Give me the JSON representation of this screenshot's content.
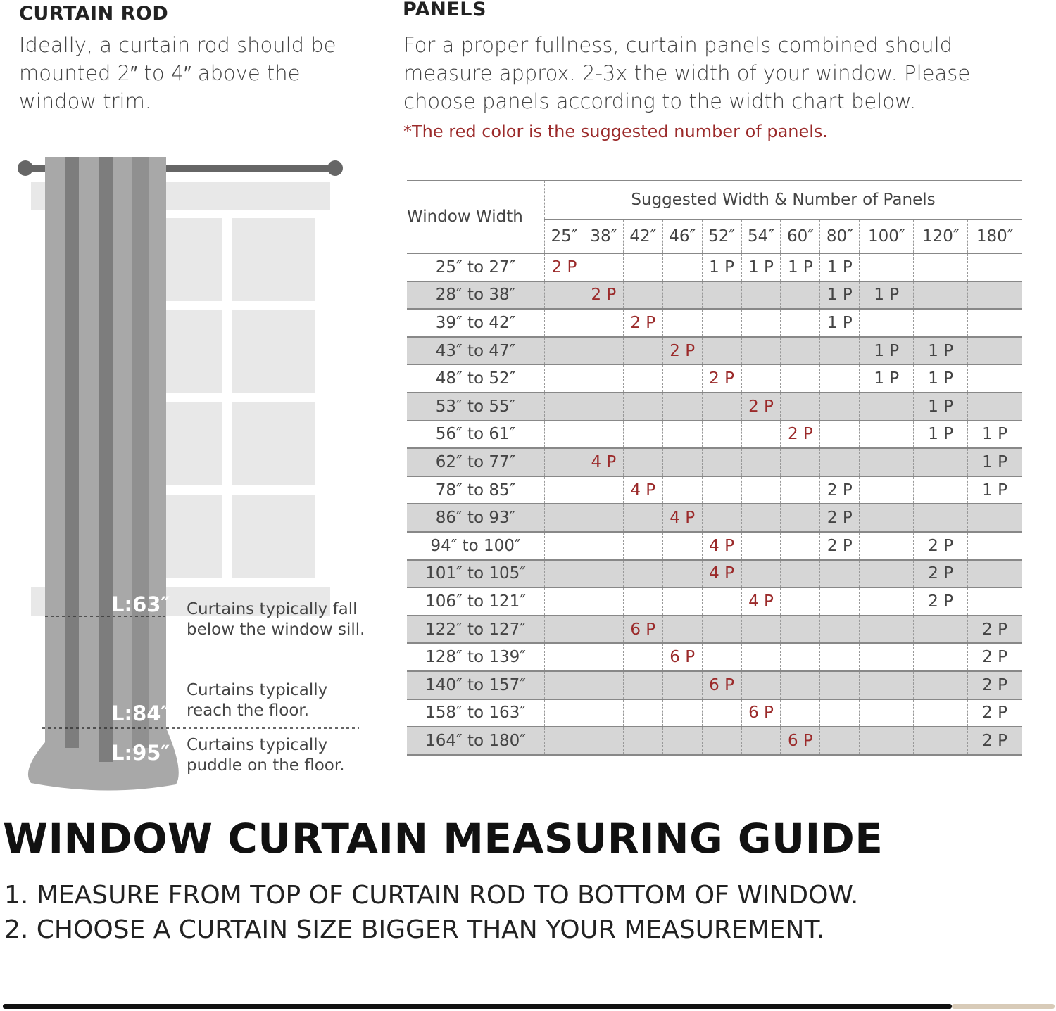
{
  "curtain_rod": {
    "heading": "CURTAIN ROD",
    "text": "Ideally, a curtain rod should be mounted 2″ to 4″ above the window trim."
  },
  "panels": {
    "heading": "PANELS",
    "text": "For a proper fullness, curtain panels combined should measure approx. 2-3x the width of your window. Please choose panels according to the width chart below.",
    "note": "*The red color is the suggested number of panels."
  },
  "table": {
    "row_header": "Window Width",
    "group_header": "Suggested Width & Number of Panels",
    "columns": [
      "25″",
      "38″",
      "42″",
      "46″",
      "52″",
      "54″",
      "60″",
      "80″",
      "100″",
      "120″",
      "180″"
    ],
    "rows": [
      {
        "label": "25″ to 27″",
        "cells": [
          "2 P",
          "",
          "",
          "",
          "1 P",
          "1 P",
          "1 P",
          "1 P",
          "",
          "",
          ""
        ],
        "suggested": 0
      },
      {
        "label": "28″ to 38″",
        "cells": [
          "",
          "2 P",
          "",
          "",
          "",
          "",
          "",
          "1 P",
          "1 P",
          "",
          ""
        ],
        "suggested": 1
      },
      {
        "label": "39″ to 42″",
        "cells": [
          "",
          "",
          "2 P",
          "",
          "",
          "",
          "",
          "1 P",
          "",
          "",
          ""
        ],
        "suggested": 2
      },
      {
        "label": "43″ to 47″",
        "cells": [
          "",
          "",
          "",
          "2 P",
          "",
          "",
          "",
          "",
          "1 P",
          "1 P",
          ""
        ],
        "suggested": 3
      },
      {
        "label": "48″ to 52″",
        "cells": [
          "",
          "",
          "",
          "",
          "2 P",
          "",
          "",
          "",
          "1 P",
          "1 P",
          ""
        ],
        "suggested": 4
      },
      {
        "label": "53″ to 55″",
        "cells": [
          "",
          "",
          "",
          "",
          "",
          "2 P",
          "",
          "",
          "",
          "1 P",
          ""
        ],
        "suggested": 5
      },
      {
        "label": "56″ to 61″",
        "cells": [
          "",
          "",
          "",
          "",
          "",
          "",
          "2 P",
          "",
          "",
          "1 P",
          "1 P"
        ],
        "suggested": 6
      },
      {
        "label": "62″ to 77″",
        "cells": [
          "",
          "4 P",
          "",
          "",
          "",
          "",
          "",
          "",
          "",
          "",
          "1 P"
        ],
        "suggested": 1
      },
      {
        "label": "78″ to 85″",
        "cells": [
          "",
          "",
          "4 P",
          "",
          "",
          "",
          "",
          "2 P",
          "",
          "",
          "1 P"
        ],
        "suggested": 2
      },
      {
        "label": "86″ to 93″",
        "cells": [
          "",
          "",
          "",
          "4 P",
          "",
          "",
          "",
          "2 P",
          "",
          "",
          ""
        ],
        "suggested": 3
      },
      {
        "label": "94″ to 100″",
        "cells": [
          "",
          "",
          "",
          "",
          "4 P",
          "",
          "",
          "2 P",
          "",
          "2 P",
          ""
        ],
        "suggested": 4
      },
      {
        "label": "101″ to 105″",
        "cells": [
          "",
          "",
          "",
          "",
          "4 P",
          "",
          "",
          "",
          "",
          "2 P",
          ""
        ],
        "suggested": 4
      },
      {
        "label": "106″ to 121″",
        "cells": [
          "",
          "",
          "",
          "",
          "",
          "4 P",
          "",
          "",
          "",
          "2 P",
          ""
        ],
        "suggested": 5
      },
      {
        "label": "122″ to 127″",
        "cells": [
          "",
          "",
          "6 P",
          "",
          "",
          "",
          "",
          "",
          "",
          "",
          "2 P"
        ],
        "suggested": 2
      },
      {
        "label": "128″ to 139″",
        "cells": [
          "",
          "",
          "",
          "6 P",
          "",
          "",
          "",
          "",
          "",
          "",
          "2 P"
        ],
        "suggested": 3
      },
      {
        "label": "140″ to 157″",
        "cells": [
          "",
          "",
          "",
          "",
          "6 P",
          "",
          "",
          "",
          "",
          "",
          "2 P"
        ],
        "suggested": 4
      },
      {
        "label": "158″ to 163″",
        "cells": [
          "",
          "",
          "",
          "",
          "",
          "6 P",
          "",
          "",
          "",
          "",
          "2 P"
        ],
        "suggested": 5
      },
      {
        "label": "164″ to 180″",
        "cells": [
          "",
          "",
          "",
          "",
          "",
          "",
          "6 P",
          "",
          "",
          "",
          "2 P"
        ],
        "suggested": 6
      }
    ]
  },
  "lengths": [
    {
      "label": "L:63″",
      "caption": "Curtains typically fall below the window sill."
    },
    {
      "label": "L:84″",
      "caption": "Curtains typically reach the floor."
    },
    {
      "label": "L:95″",
      "caption": "Curtains typically puddle on the floor."
    }
  ],
  "guide": {
    "title": "WINDOW CURTAIN MEASURING GUIDE",
    "steps": [
      "1. MEASURE FROM TOP OF CURTAIN ROD TO BOTTOM OF WINDOW.",
      "2. CHOOSE A CURTAIN SIZE BIGGER THAN YOUR MEASUREMENT."
    ]
  },
  "colors": {
    "suggested": "#9b2a2a",
    "row_shade": "#d6d6d6",
    "curtain": "#a8a8a8",
    "window": "#e8e8e8"
  }
}
